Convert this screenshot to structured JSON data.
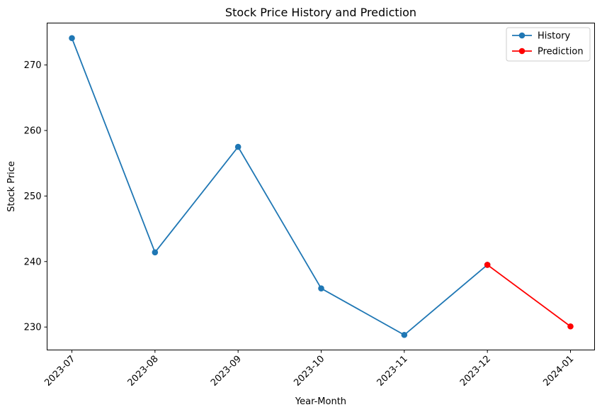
{
  "chart_data": {
    "type": "line",
    "title": "Stock Price History and Prediction",
    "xlabel": "Year-Month",
    "ylabel": "Stock Price",
    "categories": [
      "2023-07",
      "2023-08",
      "2023-09",
      "2023-10",
      "2023-11",
      "2023-12",
      "2024-01"
    ],
    "ylim": [
      226.5,
      276.4
    ],
    "yticks": [
      230,
      240,
      250,
      260,
      270
    ],
    "grid": false,
    "legend_position": "top-right",
    "series": [
      {
        "name": "History",
        "color": "#1f77b4",
        "points": [
          {
            "x": "2023-07",
            "y": 274.1
          },
          {
            "x": "2023-08",
            "y": 241.4
          },
          {
            "x": "2023-09",
            "y": 257.5
          },
          {
            "x": "2023-10",
            "y": 235.9
          },
          {
            "x": "2023-11",
            "y": 228.8
          },
          {
            "x": "2023-12",
            "y": 239.5
          }
        ]
      },
      {
        "name": "Prediction",
        "color": "#ff0000",
        "points": [
          {
            "x": "2023-12",
            "y": 239.5
          },
          {
            "x": "2024-01",
            "y": 230.1
          }
        ]
      }
    ]
  }
}
